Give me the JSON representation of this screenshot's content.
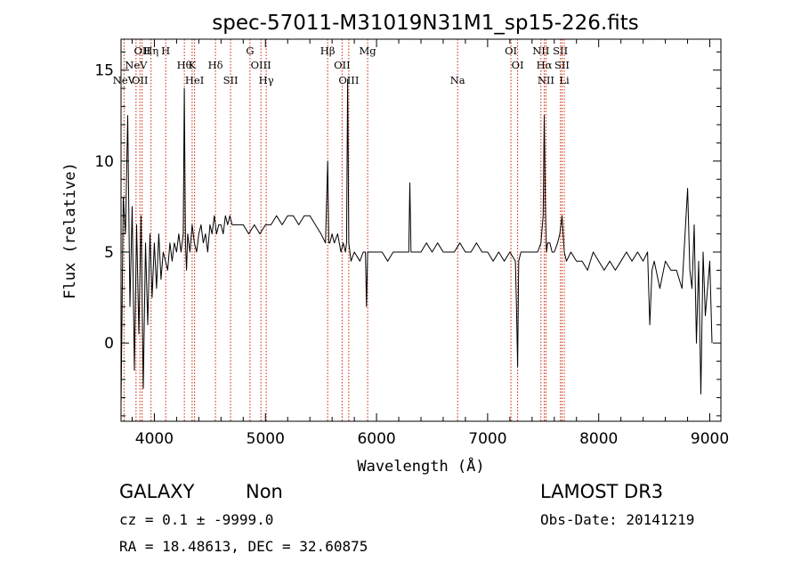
{
  "chart_data": {
    "type": "line",
    "title": "spec-57011-M31019N31M1_sp15-226.fits",
    "xlabel": "Wavelength (Å)",
    "ylabel": "Flux (relative)",
    "xlim": [
      3700,
      9100
    ],
    "ylim": [
      -4.3,
      16.7
    ],
    "x_ticks": [
      4000,
      5000,
      6000,
      7000,
      8000,
      9000
    ],
    "y_ticks": [
      0,
      5,
      10,
      15
    ],
    "series": [
      {
        "x": [
          3700,
          3720,
          3740,
          3760,
          3780,
          3800,
          3820,
          3840,
          3860,
          3880,
          3900,
          3920,
          3940,
          3960,
          3980,
          4000,
          4020,
          4040,
          4060,
          4080,
          4100,
          4120,
          4140,
          4160,
          4180,
          4200,
          4220,
          4240,
          4260,
          4270,
          4280,
          4290,
          4300,
          4320,
          4340,
          4360,
          4380,
          4400,
          4420,
          4440,
          4460,
          4480,
          4500,
          4520,
          4540,
          4560,
          4580,
          4600,
          4620,
          4640,
          4660,
          4680,
          4700,
          4750,
          4800,
          4850,
          4900,
          4950,
          5000,
          5050,
          5100,
          5150,
          5200,
          5250,
          5300,
          5350,
          5400,
          5450,
          5500,
          5540,
          5560,
          5570,
          5580,
          5600,
          5620,
          5650,
          5680,
          5700,
          5720,
          5730,
          5740,
          5750,
          5770,
          5800,
          5850,
          5880,
          5900,
          5910,
          5920,
          5950,
          6000,
          6050,
          6100,
          6150,
          6200,
          6250,
          6290,
          6300,
          6310,
          6350,
          6400,
          6450,
          6500,
          6550,
          6600,
          6650,
          6700,
          6750,
          6800,
          6850,
          6900,
          6950,
          7000,
          7050,
          7100,
          7150,
          7200,
          7250,
          7260,
          7270,
          7280,
          7300,
          7350,
          7400,
          7450,
          7480,
          7500,
          7510,
          7520,
          7530,
          7540,
          7560,
          7580,
          7600,
          7630,
          7650,
          7670,
          7690,
          7710,
          7750,
          7800,
          7850,
          7900,
          7950,
          8000,
          8050,
          8100,
          8150,
          8200,
          8250,
          8300,
          8350,
          8400,
          8440,
          8460,
          8480,
          8500,
          8550,
          8600,
          8650,
          8700,
          8750,
          8800,
          8820,
          8840,
          8860,
          8880,
          8900,
          8920,
          8940,
          8960,
          8980,
          9000,
          9020
        ],
        "y": [
          -3.5,
          8.0,
          6.0,
          12.5,
          2.0,
          7.5,
          -1.5,
          6.5,
          0.5,
          7.0,
          -2.5,
          5.5,
          1.0,
          6.0,
          2.5,
          5.5,
          3.0,
          6.0,
          3.5,
          5.0,
          4.5,
          4.0,
          5.5,
          4.5,
          5.5,
          5.0,
          6.0,
          5.0,
          6.0,
          14.0,
          5.5,
          4.0,
          6.0,
          5.0,
          6.5,
          5.5,
          5.0,
          6.0,
          6.5,
          5.5,
          6.0,
          5.0,
          6.5,
          6.0,
          7.0,
          6.0,
          6.5,
          6.5,
          6.0,
          7.0,
          6.5,
          7.0,
          6.5,
          6.5,
          6.5,
          6.0,
          6.5,
          6.0,
          6.5,
          6.5,
          7.0,
          6.5,
          7.0,
          7.0,
          6.5,
          7.0,
          7.0,
          6.5,
          6.0,
          5.5,
          10.0,
          5.5,
          5.5,
          6.0,
          5.5,
          6.0,
          5.0,
          5.5,
          5.0,
          5.5,
          14.5,
          5.5,
          4.5,
          5.0,
          4.5,
          5.0,
          5.0,
          2.0,
          5.0,
          5.0,
          5.0,
          5.0,
          4.5,
          5.0,
          5.0,
          5.0,
          5.0,
          8.8,
          5.0,
          5.0,
          5.0,
          5.5,
          5.0,
          5.5,
          5.0,
          5.0,
          5.0,
          5.5,
          5.0,
          5.0,
          5.5,
          5.0,
          5.0,
          4.5,
          5.0,
          4.5,
          5.0,
          4.5,
          2.0,
          -1.3,
          4.5,
          5.0,
          5.0,
          5.0,
          5.0,
          5.5,
          7.0,
          12.5,
          7.5,
          5.0,
          5.5,
          5.5,
          5.0,
          5.0,
          5.5,
          6.0,
          7.0,
          5.0,
          4.5,
          5.0,
          4.5,
          4.5,
          4.0,
          5.0,
          4.5,
          4.0,
          4.5,
          4.0,
          4.5,
          5.0,
          4.5,
          5.0,
          4.5,
          5.0,
          1.0,
          4.0,
          4.5,
          3.0,
          4.5,
          4.0,
          4.0,
          3.0,
          8.5,
          4.0,
          3.0,
          6.5,
          0.0,
          4.5,
          -2.8,
          5.0,
          1.5,
          3.0,
          4.5,
          0.0
        ]
      }
    ],
    "spectral_lines": [
      {
        "label": "NeV",
        "row": 2,
        "wavelength": 3727
      },
      {
        "label": "NeV",
        "row": 1,
        "wavelength": 3835
      },
      {
        "label": "OII",
        "row": 2,
        "wavelength": 3870
      },
      {
        "label": "OII",
        "row": 0,
        "wavelength": 3890
      },
      {
        "label": "Hη",
        "row": 0,
        "wavelength": 3970
      },
      {
        "label": "H",
        "row": 0,
        "wavelength": 4102
      },
      {
        "label": "Hθ",
        "row": 1,
        "wavelength": 4270
      },
      {
        "label": "K",
        "row": 1,
        "wavelength": 4340
      },
      {
        "label": "HeI",
        "row": 2,
        "wavelength": 4362
      },
      {
        "label": "Hδ",
        "row": 1,
        "wavelength": 4550
      },
      {
        "label": "SII",
        "row": 2,
        "wavelength": 4686
      },
      {
        "label": "G",
        "row": 0,
        "wavelength": 4861
      },
      {
        "label": "OIII",
        "row": 1,
        "wavelength": 4959
      },
      {
        "label": "Hγ",
        "row": 2,
        "wavelength": 5007
      },
      {
        "label": "Hβ",
        "row": 0,
        "wavelength": 5560
      },
      {
        "label": "OII",
        "row": 1,
        "wavelength": 5690
      },
      {
        "label": "OIII",
        "row": 2,
        "wavelength": 5750
      },
      {
        "label": "Mg",
        "row": 0,
        "wavelength": 5920
      },
      {
        "label": "Na",
        "row": 2,
        "wavelength": 6730
      },
      {
        "label": "OI",
        "row": 0,
        "wavelength": 7210
      },
      {
        "label": "OI",
        "row": 1,
        "wavelength": 7270
      },
      {
        "label": "NII",
        "row": 0,
        "wavelength": 7480
      },
      {
        "label": "Hα",
        "row": 1,
        "wavelength": 7510
      },
      {
        "label": "NII",
        "row": 2,
        "wavelength": 7525
      },
      {
        "label": "SII",
        "row": 0,
        "wavelength": 7655
      },
      {
        "label": "SII",
        "row": 1,
        "wavelength": 7670
      },
      {
        "label": "Li",
        "row": 2,
        "wavelength": 7690
      }
    ],
    "grid": false
  },
  "info": {
    "object_class": "GALAXY",
    "subclass": "Non",
    "survey": "LAMOST DR3",
    "cz": "cz = 0.1 ± -9999.0",
    "obs_date": "Obs-Date: 20141219",
    "coords": "RA =  18.48613, DEC =  32.60875"
  },
  "colors": {
    "spectrum": "#000000",
    "line_markers": "#cc2200",
    "axes": "#000000"
  }
}
